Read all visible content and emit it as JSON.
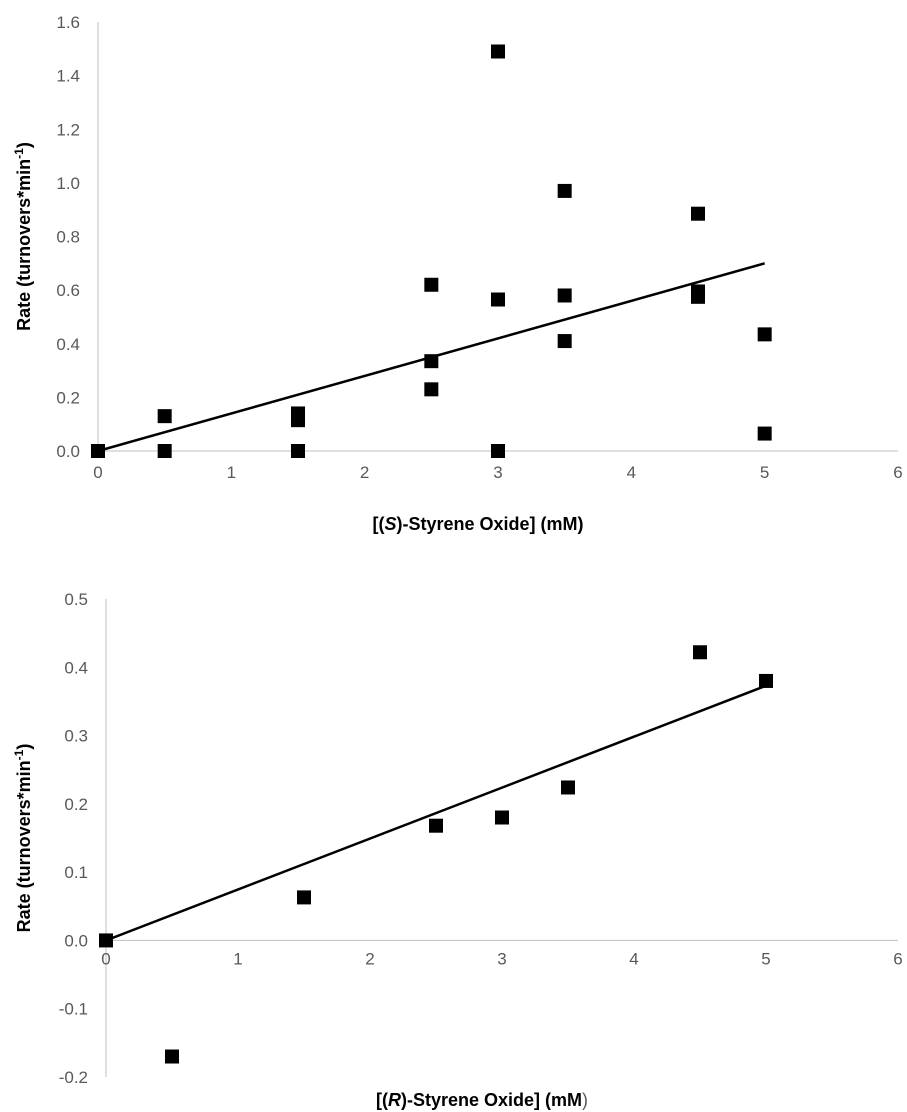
{
  "chart_data": [
    {
      "type": "scatter",
      "xlabel": {
        "pre": "[(",
        "italic": "S",
        "post": ")-Styrene Oxide] (mM)",
        "tail": ""
      },
      "ylabel": {
        "pre": "Rate (turnovers*min",
        "sup": "-1",
        "post": ")"
      },
      "xlim": [
        0,
        6
      ],
      "ylim": [
        0,
        1.6
      ],
      "x_ticks": [
        0,
        1,
        2,
        3,
        4,
        5,
        6
      ],
      "y_ticks": [
        0.0,
        0.2,
        0.4,
        0.6,
        0.8,
        1.0,
        1.2,
        1.4,
        1.6
      ],
      "y_tick_labels": [
        "0.0",
        "0.2",
        "0.4",
        "0.6",
        "0.8",
        "1.0",
        "1.2",
        "1.4",
        "1.6"
      ],
      "grid": false,
      "marker": "square",
      "points": [
        [
          0,
          0
        ],
        [
          0.5,
          0
        ],
        [
          0.5,
          0.13
        ],
        [
          1.5,
          0
        ],
        [
          1.5,
          0.115
        ],
        [
          1.5,
          0.14
        ],
        [
          2.5,
          0.23
        ],
        [
          2.5,
          0.335
        ],
        [
          2.5,
          0.62
        ],
        [
          3,
          0
        ],
        [
          3,
          0.565
        ],
        [
          3,
          1.49
        ],
        [
          3.5,
          0.41
        ],
        [
          3.5,
          0.58
        ],
        [
          3.5,
          0.97
        ],
        [
          4.5,
          0.575
        ],
        [
          4.5,
          0.595
        ],
        [
          4.5,
          0.885
        ],
        [
          5,
          0.065
        ],
        [
          5,
          0.435
        ]
      ],
      "trendline": [
        [
          0,
          0
        ],
        [
          5,
          0.7
        ]
      ],
      "colors": {
        "marker": "#000000",
        "axis": "#bfbfbf",
        "line": "#000000"
      }
    },
    {
      "type": "scatter",
      "xlabel": {
        "pre": "[(",
        "italic": "R",
        "post": ")-Styrene Oxide] (mM",
        "tail": ")"
      },
      "ylabel": {
        "pre": "Rate (turnovers*min",
        "sup": "-1",
        "post": ")"
      },
      "xlim": [
        0,
        6
      ],
      "ylim": [
        -0.2,
        0.5
      ],
      "x_ticks": [
        0,
        1,
        2,
        3,
        4,
        5,
        6
      ],
      "y_ticks": [
        -0.2,
        -0.1,
        0.0,
        0.1,
        0.2,
        0.3,
        0.4,
        0.5
      ],
      "y_tick_labels": [
        "-0.2",
        "-0.1",
        "0.0",
        "0.1",
        "0.2",
        "0.3",
        "0.4",
        "0.5"
      ],
      "grid": false,
      "marker": "square",
      "points": [
        [
          0,
          0
        ],
        [
          0.5,
          -0.17
        ],
        [
          1.5,
          0.063
        ],
        [
          2.5,
          0.168
        ],
        [
          3,
          0.18
        ],
        [
          3.5,
          0.224
        ],
        [
          4.5,
          0.422
        ],
        [
          5,
          0.38
        ]
      ],
      "trendline": [
        [
          0,
          0
        ],
        [
          5,
          0.373
        ]
      ],
      "colors": {
        "marker": "#000000",
        "axis": "#bfbfbf",
        "line": "#000000"
      }
    }
  ]
}
